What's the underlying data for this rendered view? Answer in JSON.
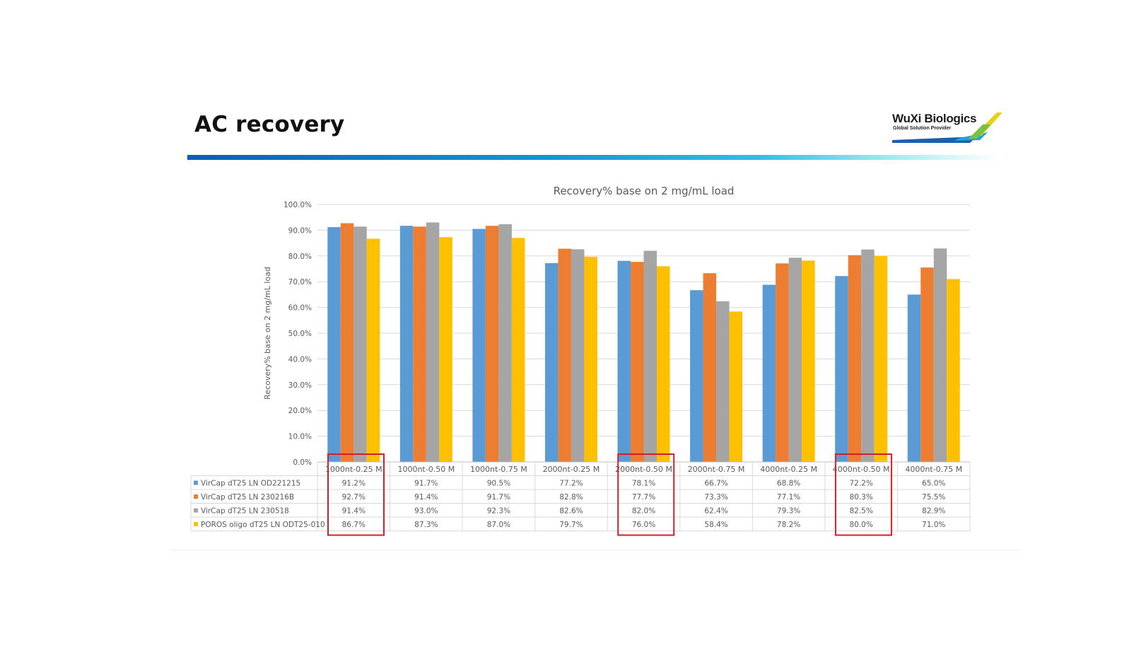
{
  "slide": {
    "title": "AC recovery",
    "logo": {
      "name": "WuXi Biologics",
      "tagline": "Global Solution Provider"
    }
  },
  "chart_data": {
    "type": "bar",
    "title": "Recovery% base on 2 mg/mL load",
    "xlabel": "",
    "ylabel": "Recovery% base on 2 mg/mL load",
    "ylim": [
      0,
      100
    ],
    "y_tick_step": 10,
    "y_tick_labels": [
      "0.0%",
      "10.0%",
      "20.0%",
      "30.0%",
      "40.0%",
      "50.0%",
      "60.0%",
      "70.0%",
      "80.0%",
      "90.0%",
      "100.0%"
    ],
    "grid": true,
    "legend_placement": "data-table",
    "categories": [
      "1000nt-0.25 M",
      "1000nt-0.50 M",
      "1000nt-0.75 M",
      "2000nt-0.25 M",
      "2000nt-0.50 M",
      "2000nt-0.75 M",
      "4000nt-0.25 M",
      "4000nt-0.50 M",
      "4000nt-0.75 M"
    ],
    "series": [
      {
        "name": "VirCap dT25 LN OD221215",
        "color": "#5b9bd5",
        "values": [
          91.2,
          91.7,
          90.5,
          77.2,
          78.1,
          66.7,
          68.8,
          72.2,
          65.0
        ],
        "labels": [
          "91.2%",
          "91.7%",
          "90.5%",
          "77.2%",
          "78.1%",
          "66.7%",
          "68.8%",
          "72.2%",
          "65.0%"
        ]
      },
      {
        "name": "VirCap dT25 LN 230216B",
        "color": "#ed7d31",
        "values": [
          92.7,
          91.4,
          91.7,
          82.8,
          77.7,
          73.3,
          77.1,
          80.3,
          75.5
        ],
        "labels": [
          "92.7%",
          "91.4%",
          "91.7%",
          "82.8%",
          "77.7%",
          "73.3%",
          "77.1%",
          "80.3%",
          "75.5%"
        ]
      },
      {
        "name": "VirCap dT25 LN 230518",
        "color": "#a5a5a5",
        "values": [
          91.4,
          93.0,
          92.3,
          82.6,
          82.0,
          62.4,
          79.3,
          82.5,
          82.9
        ],
        "labels": [
          "91.4%",
          "93.0%",
          "92.3%",
          "82.6%",
          "82.0%",
          "62.4%",
          "79.3%",
          "82.5%",
          "82.9%"
        ]
      },
      {
        "name": "POROS oligo dT25 LN ODT25-010",
        "color": "#ffc000",
        "values": [
          86.7,
          87.3,
          87.0,
          79.7,
          76.0,
          58.4,
          78.2,
          80.0,
          71.0
        ],
        "labels": [
          "86.7%",
          "87.3%",
          "87.0%",
          "79.7%",
          "76.0%",
          "58.4%",
          "78.2%",
          "80.0%",
          "71.0%"
        ]
      }
    ],
    "highlighted_categories": [
      "1000nt-0.25 M",
      "2000nt-0.50 M",
      "4000nt-0.50 M"
    ],
    "highlight_color": "#d0202a"
  }
}
